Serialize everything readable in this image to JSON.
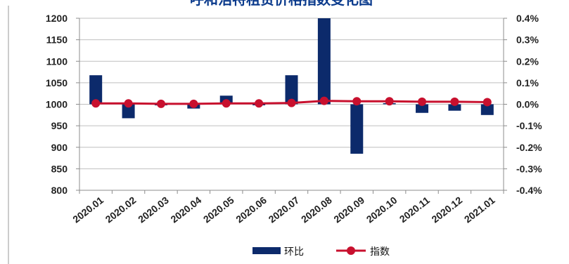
{
  "chart_data": {
    "type": "bar",
    "title": "呼和浩特租赁价格指数变化图",
    "categories": [
      "2020.01",
      "2020.02",
      "2020.03",
      "2020.04",
      "2020.05",
      "2020.06",
      "2020.07",
      "2020.08",
      "2020.09",
      "2020.10",
      "2020.11",
      "2020.12",
      "2021.01"
    ],
    "series": [
      {
        "name": "环比",
        "kind": "bar",
        "axis": "right",
        "unit": "%",
        "color": "#0c2a6b",
        "values": [
          0.135,
          -0.065,
          -0.005,
          -0.02,
          0.04,
          0.0,
          0.135,
          0.4,
          -0.23,
          0.005,
          -0.04,
          -0.03,
          -0.05
        ]
      },
      {
        "name": "指数",
        "kind": "line",
        "axis": "left",
        "color": "#c8102e",
        "values": [
          1002,
          1002,
          1001,
          1001,
          1002,
          1002,
          1003,
          1008,
          1007,
          1007,
          1006,
          1006,
          1005
        ]
      }
    ],
    "y_left": {
      "min": 800,
      "max": 1200,
      "ticks": [
        800,
        850,
        900,
        950,
        1000,
        1050,
        1100,
        1150,
        1200
      ]
    },
    "y_right": {
      "min": -0.4,
      "max": 0.4,
      "ticks": [
        "-0.4%",
        "-0.3%",
        "-0.2%",
        "-0.1%",
        "0.0%",
        "0.1%",
        "0.2%",
        "0.3%",
        "0.4%"
      ]
    },
    "grid": "horizontal",
    "legend_position": "bottom"
  }
}
